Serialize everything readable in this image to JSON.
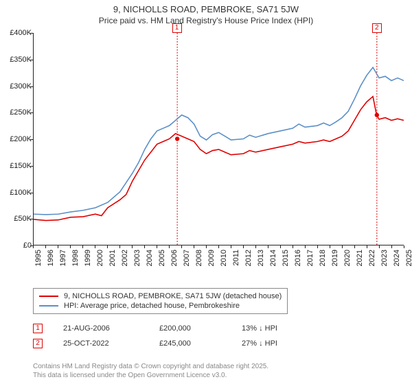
{
  "title": "9, NICHOLLS ROAD, PEMBROKE, SA71 5JW",
  "subtitle": "Price paid vs. HM Land Registry's House Price Index (HPI)",
  "chart": {
    "type": "line",
    "ylabel_prefix": "£",
    "ylim": [
      0,
      400000
    ],
    "ytick_step": 50000,
    "yticks_labels": [
      "£0",
      "£50K",
      "£100K",
      "£150K",
      "£200K",
      "£250K",
      "£300K",
      "£350K",
      "£400K"
    ],
    "xlim": [
      1995,
      2025
    ],
    "xticks": [
      1995,
      1996,
      1997,
      1998,
      1999,
      2000,
      2001,
      2002,
      2003,
      2004,
      2005,
      2006,
      2007,
      2008,
      2009,
      2010,
      2011,
      2012,
      2013,
      2014,
      2015,
      2016,
      2017,
      2018,
      2019,
      2020,
      2021,
      2022,
      2023,
      2024,
      2025
    ],
    "background_color": "#ffffff",
    "grid_color": "#cccccc",
    "series": [
      {
        "name": "price_paid",
        "label": "9, NICHOLLS ROAD, PEMBROKE, SA71 5JW (detached house)",
        "color": "#e00000",
        "line_width": 1.6,
        "data": [
          [
            1995,
            48000
          ],
          [
            1996,
            46000
          ],
          [
            1997,
            47000
          ],
          [
            1998,
            52000
          ],
          [
            1999,
            53000
          ],
          [
            2000,
            58000
          ],
          [
            2000.5,
            55000
          ],
          [
            2001,
            70000
          ],
          [
            2002,
            85000
          ],
          [
            2002.5,
            95000
          ],
          [
            2003,
            120000
          ],
          [
            2003.5,
            140000
          ],
          [
            2004,
            160000
          ],
          [
            2004.5,
            175000
          ],
          [
            2005,
            190000
          ],
          [
            2005.5,
            195000
          ],
          [
            2006,
            200000
          ],
          [
            2006.5,
            210000
          ],
          [
            2007,
            205000
          ],
          [
            2007.5,
            200000
          ],
          [
            2008,
            195000
          ],
          [
            2008.5,
            180000
          ],
          [
            2009,
            172000
          ],
          [
            2009.5,
            178000
          ],
          [
            2010,
            180000
          ],
          [
            2010.5,
            175000
          ],
          [
            2011,
            170000
          ],
          [
            2012,
            172000
          ],
          [
            2012.5,
            178000
          ],
          [
            2013,
            175000
          ],
          [
            2014,
            180000
          ],
          [
            2015,
            185000
          ],
          [
            2016,
            190000
          ],
          [
            2016.5,
            195000
          ],
          [
            2017,
            192000
          ],
          [
            2018,
            195000
          ],
          [
            2018.5,
            198000
          ],
          [
            2019,
            195000
          ],
          [
            2019.5,
            200000
          ],
          [
            2020,
            205000
          ],
          [
            2020.5,
            215000
          ],
          [
            2021,
            235000
          ],
          [
            2021.5,
            255000
          ],
          [
            2022,
            270000
          ],
          [
            2022.5,
            280000
          ],
          [
            2022.8,
            245000
          ],
          [
            2023,
            237000
          ],
          [
            2023.5,
            240000
          ],
          [
            2024,
            235000
          ],
          [
            2024.5,
            238000
          ],
          [
            2025,
            235000
          ]
        ]
      },
      {
        "name": "hpi",
        "label": "HPI: Average price, detached house, Pembrokeshire",
        "color": "#5b8fc7",
        "line_width": 1.6,
        "data": [
          [
            1995,
            58000
          ],
          [
            1996,
            57000
          ],
          [
            1997,
            58000
          ],
          [
            1998,
            62000
          ],
          [
            1999,
            65000
          ],
          [
            2000,
            70000
          ],
          [
            2001,
            80000
          ],
          [
            2002,
            100000
          ],
          [
            2003,
            135000
          ],
          [
            2003.5,
            155000
          ],
          [
            2004,
            180000
          ],
          [
            2004.5,
            200000
          ],
          [
            2005,
            215000
          ],
          [
            2005.5,
            220000
          ],
          [
            2006,
            225000
          ],
          [
            2006.5,
            235000
          ],
          [
            2007,
            245000
          ],
          [
            2007.5,
            240000
          ],
          [
            2008,
            228000
          ],
          [
            2008.5,
            205000
          ],
          [
            2009,
            198000
          ],
          [
            2009.5,
            208000
          ],
          [
            2010,
            212000
          ],
          [
            2010.5,
            205000
          ],
          [
            2011,
            198000
          ],
          [
            2012,
            200000
          ],
          [
            2012.5,
            207000
          ],
          [
            2013,
            203000
          ],
          [
            2014,
            210000
          ],
          [
            2015,
            215000
          ],
          [
            2016,
            220000
          ],
          [
            2016.5,
            228000
          ],
          [
            2017,
            222000
          ],
          [
            2018,
            225000
          ],
          [
            2018.5,
            230000
          ],
          [
            2019,
            225000
          ],
          [
            2019.5,
            232000
          ],
          [
            2020,
            240000
          ],
          [
            2020.5,
            252000
          ],
          [
            2021,
            275000
          ],
          [
            2021.5,
            300000
          ],
          [
            2022,
            320000
          ],
          [
            2022.5,
            335000
          ],
          [
            2023,
            315000
          ],
          [
            2023.5,
            318000
          ],
          [
            2024,
            310000
          ],
          [
            2024.5,
            315000
          ],
          [
            2025,
            310000
          ]
        ]
      }
    ],
    "markers": [
      {
        "id": "1",
        "year": 2006.64,
        "color": "#e00000",
        "top_y": -14
      },
      {
        "id": "2",
        "year": 2022.82,
        "color": "#e00000",
        "top_y": -14
      }
    ]
  },
  "legend": {
    "items": [
      {
        "label_key": "chart.series.0.label",
        "color": "#e00000"
      },
      {
        "label_key": "chart.series.1.label",
        "color": "#5b8fc7"
      }
    ]
  },
  "records": [
    {
      "marker": "1",
      "color": "#e00000",
      "date": "21-AUG-2006",
      "price": "£200,000",
      "delta": "13% ↓ HPI"
    },
    {
      "marker": "2",
      "color": "#e00000",
      "date": "25-OCT-2022",
      "price": "£245,000",
      "delta": "27% ↓ HPI"
    }
  ],
  "footer_line1": "Contains HM Land Registry data © Crown copyright and database right 2025.",
  "footer_line2": "This data is licensed under the Open Government Licence v3.0."
}
